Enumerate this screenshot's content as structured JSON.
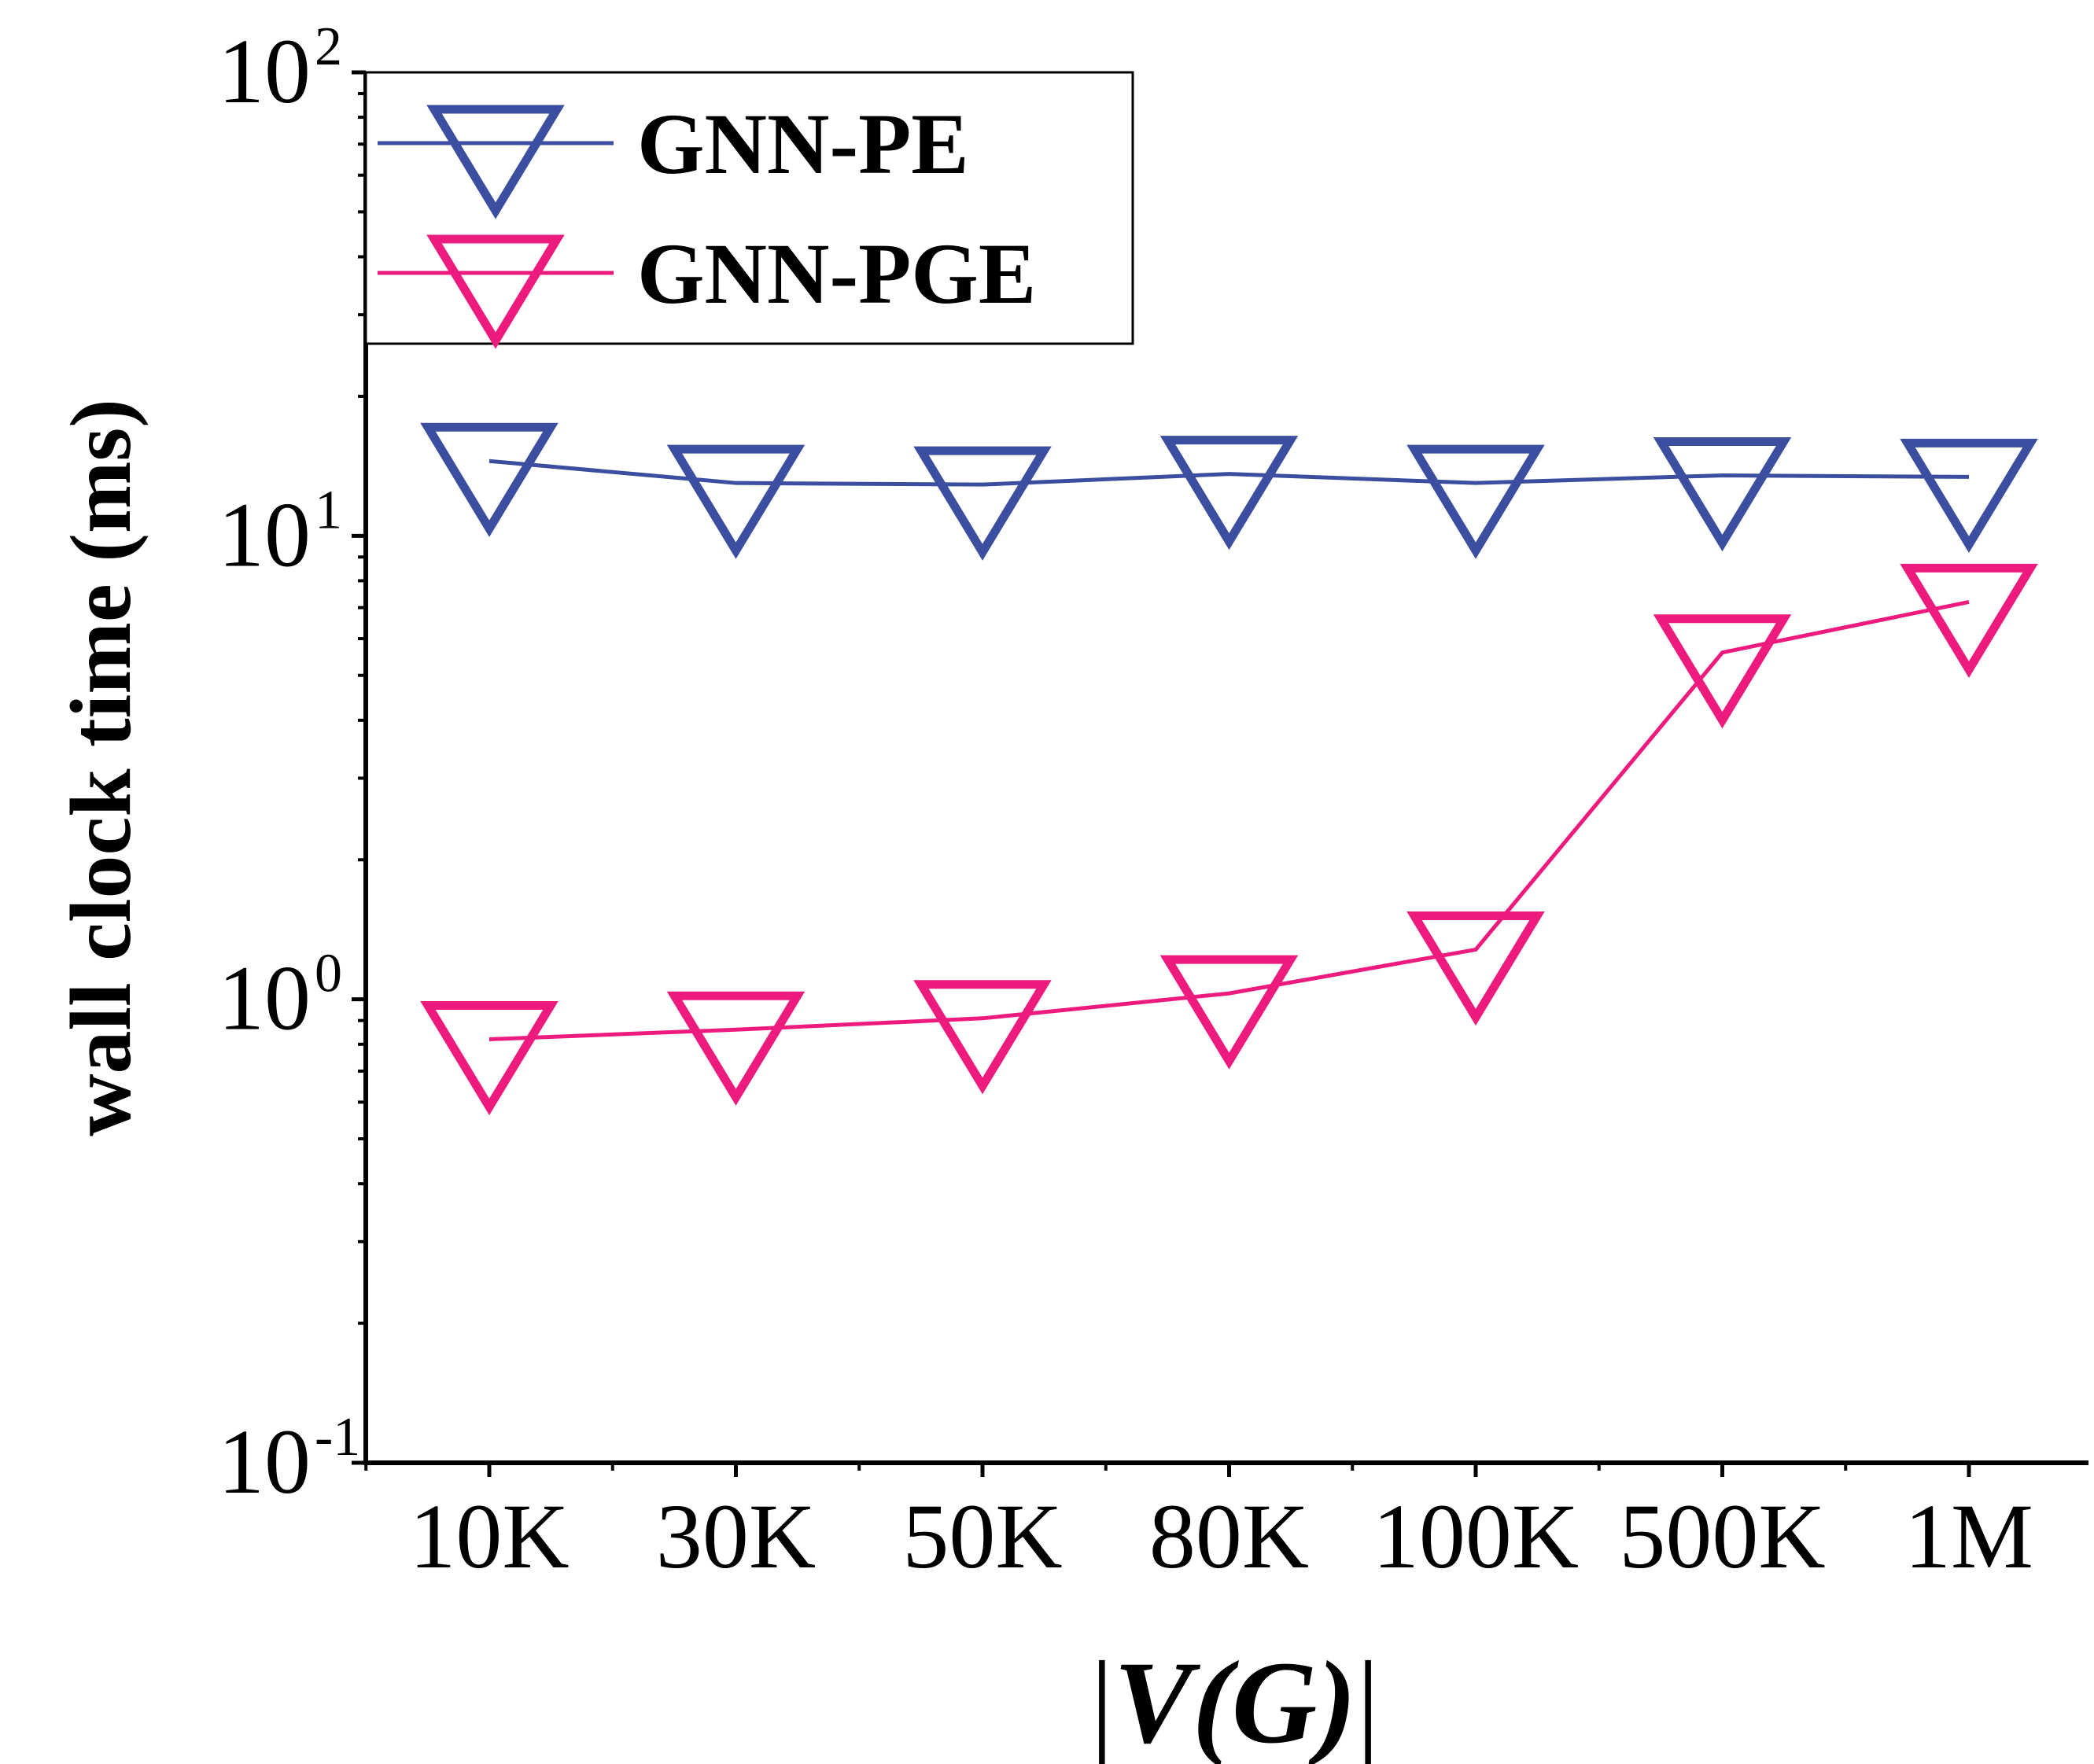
{
  "chart_data": {
    "type": "line",
    "title": "",
    "xlabel_prefix": "|",
    "xlabel": "V(G)",
    "xlabel_suffix": "|",
    "ylabel": "wall clock time (ms)",
    "yscale": "log",
    "ylim": [
      0.1,
      100
    ],
    "y_ticks": [
      {
        "base": "10",
        "exp": "-1"
      },
      {
        "base": "10",
        "exp": "0"
      },
      {
        "base": "10",
        "exp": "1"
      },
      {
        "base": "10",
        "exp": "2"
      }
    ],
    "categories": [
      "10K",
      "30K",
      "50K",
      "80K",
      "100K",
      "500K",
      "1M"
    ],
    "series": [
      {
        "name": "GNN-PE",
        "color": "#3b4ea0",
        "marker": "triangle-down",
        "values": [
          14.5,
          13.0,
          12.9,
          13.6,
          13.0,
          13.5,
          13.4
        ]
      },
      {
        "name": "GNN-PGE",
        "color": "#ee1b7f",
        "marker": "triangle-down",
        "values": [
          0.82,
          0.86,
          0.91,
          1.03,
          1.28,
          5.6,
          7.2
        ]
      }
    ],
    "legend": {
      "position": "top-left"
    },
    "grid": false
  }
}
